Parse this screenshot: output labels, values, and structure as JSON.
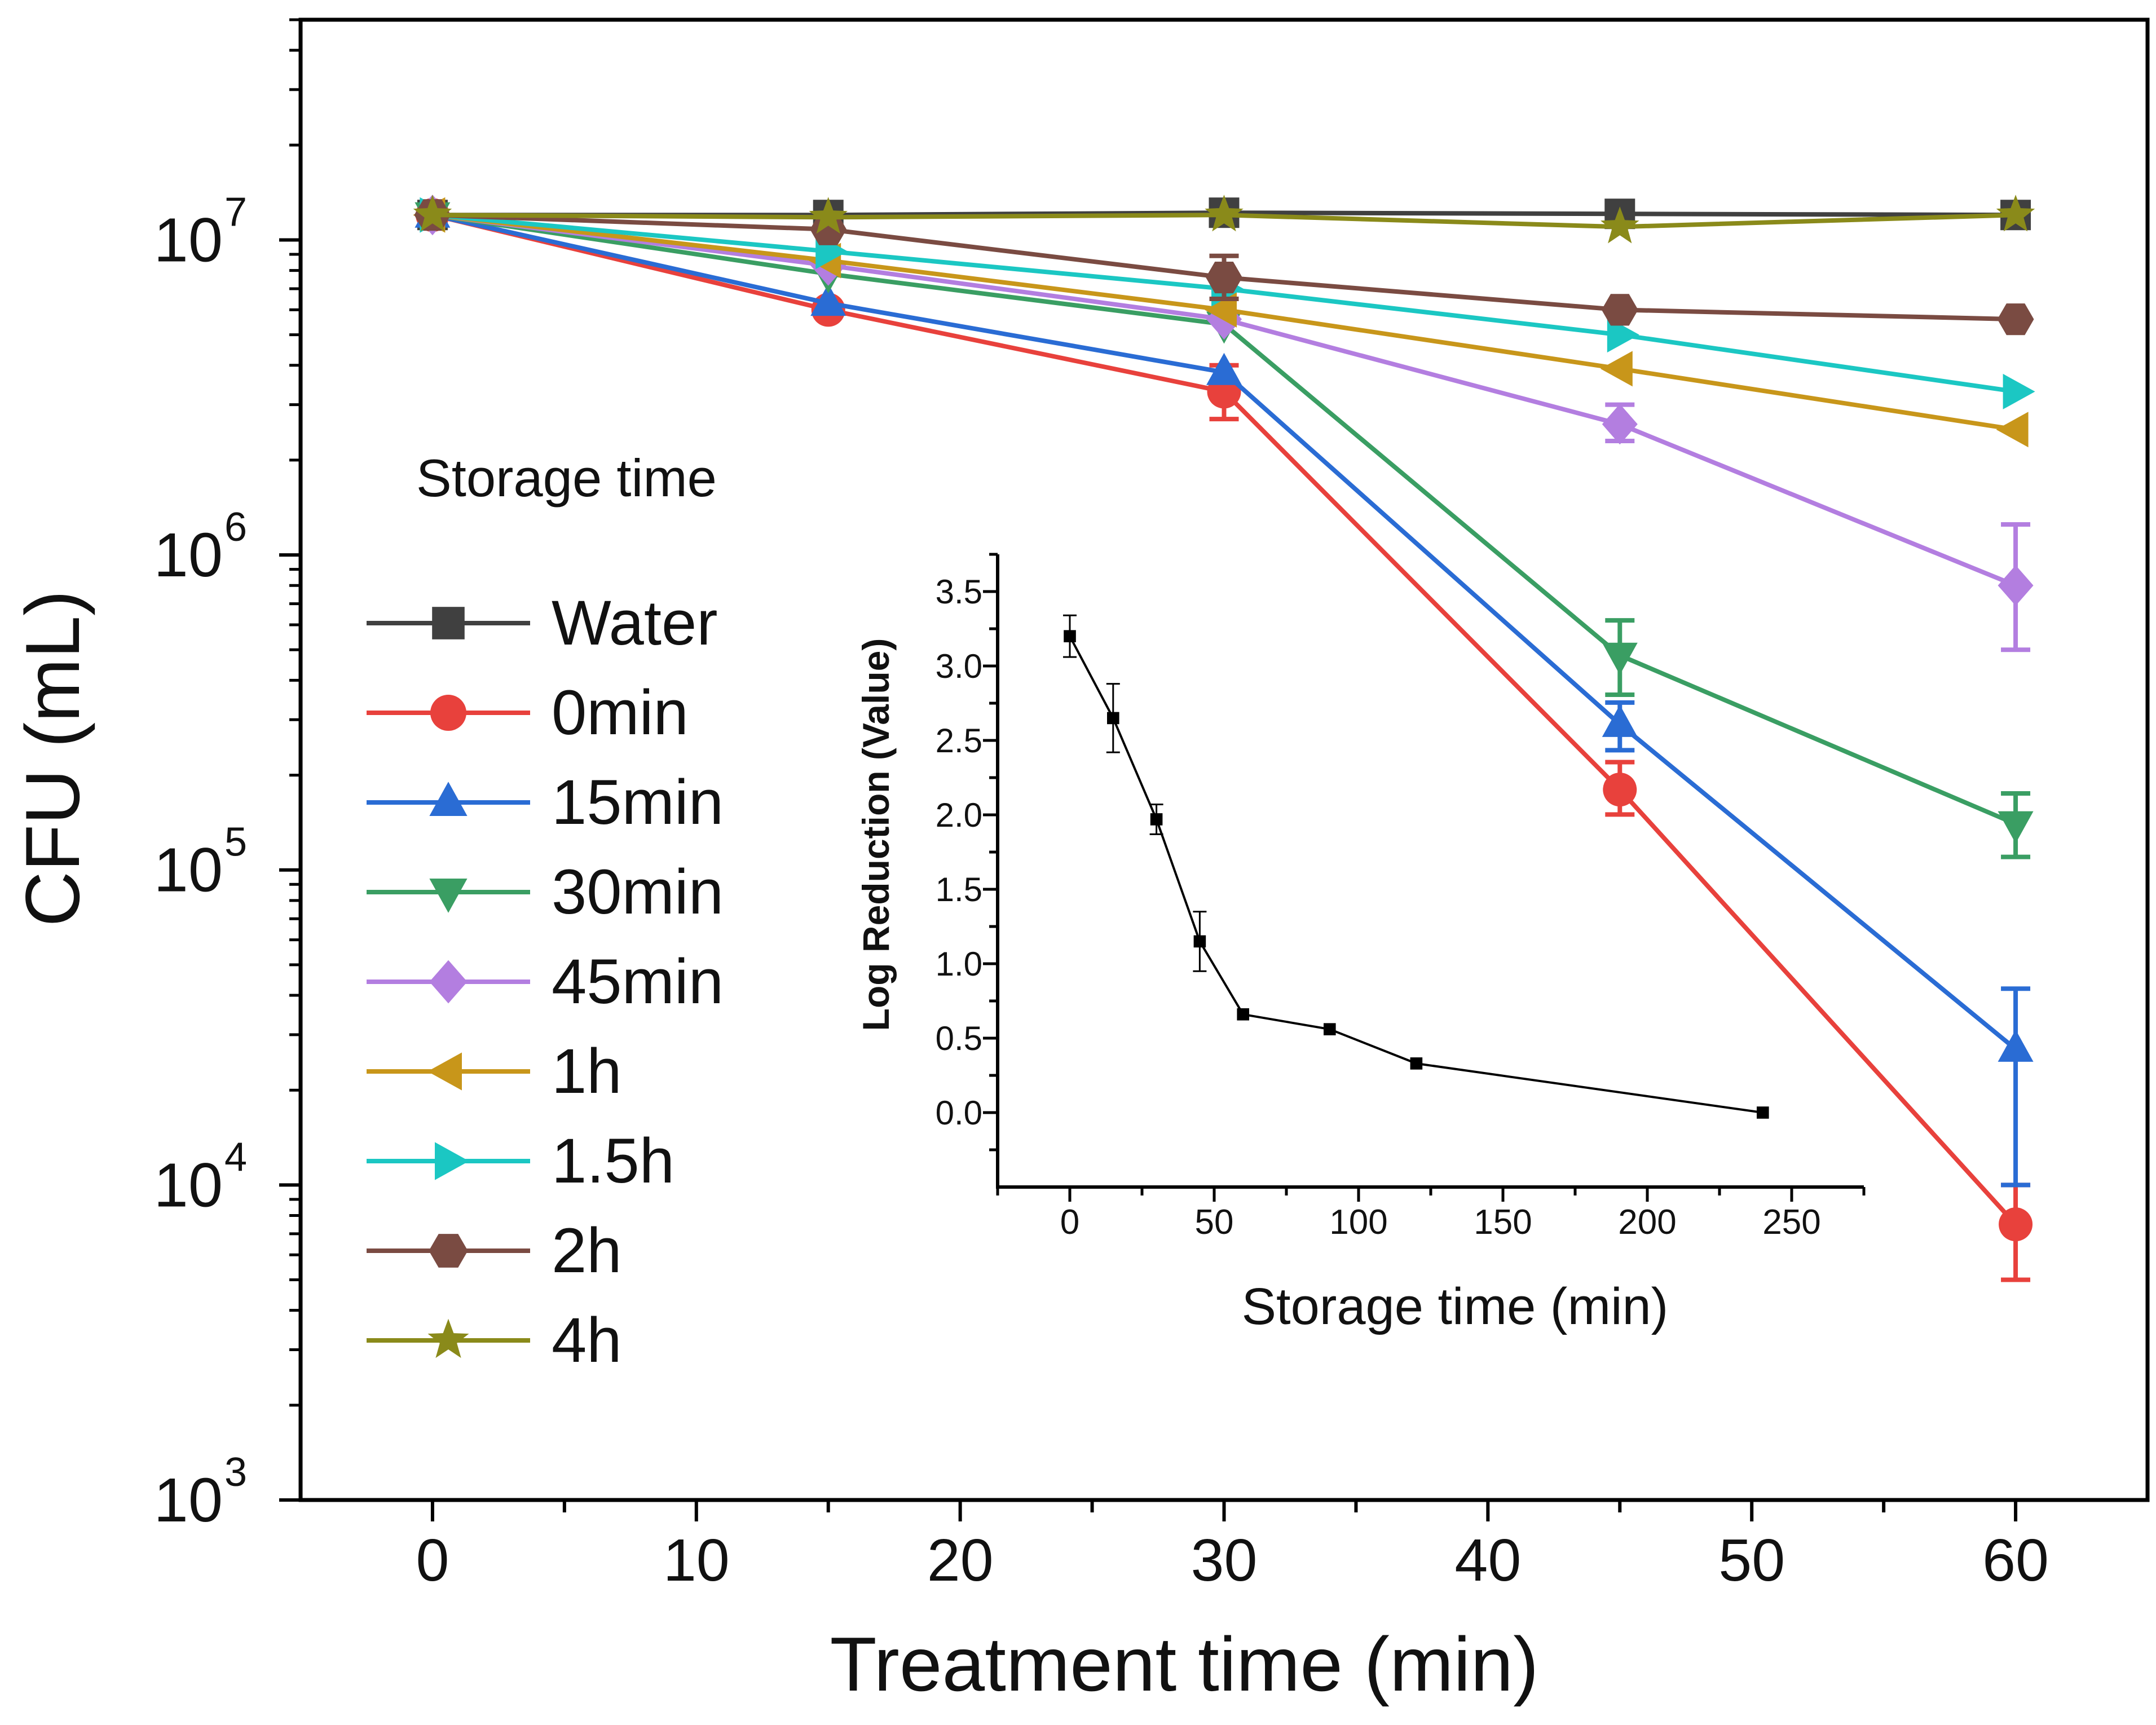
{
  "chart_data": [
    {
      "type": "line",
      "title": "",
      "xlabel": "Treatment time (min)",
      "ylabel": "CFU (mL)",
      "xlim": [
        -5,
        65
      ],
      "ylim": [
        1000,
        50000000
      ],
      "yscale": "log",
      "x_ticks": [
        0,
        10,
        20,
        30,
        40,
        50,
        60
      ],
      "x_tick_labels": [
        "0",
        "10",
        "20",
        "30",
        "40",
        "50",
        "60"
      ],
      "y_ticks": [
        1000,
        10000,
        100000,
        1000000,
        10000000
      ],
      "y_tick_labels": [
        {
          "base": "10",
          "exp": "3"
        },
        {
          "base": "10",
          "exp": "4"
        },
        {
          "base": "10",
          "exp": "5"
        },
        {
          "base": "10",
          "exp": "6"
        },
        {
          "base": "10",
          "exp": "7"
        }
      ],
      "legend_title": "Storage time",
      "legend_position": "left",
      "x": [
        0,
        15,
        30,
        45,
        60
      ],
      "series": [
        {
          "name": "Water",
          "color": "#404040",
          "marker": "square",
          "values": [
            12000000,
            12000000,
            12200000,
            12100000,
            12000000
          ],
          "errors": [
            null,
            null,
            null,
            null,
            null
          ]
        },
        {
          "name": "0min",
          "color": "#e8413c",
          "marker": "circle",
          "values": [
            12000000,
            6000000,
            3300000,
            180000,
            7500
          ],
          "errors": [
            null,
            null,
            [
              2700000,
              4000000
            ],
            [
              150000,
              220000
            ],
            [
              5000,
              10000
            ]
          ]
        },
        {
          "name": "15min",
          "color": "#2a6cd4",
          "marker": "triangle-up",
          "values": [
            12000000,
            6300000,
            3800000,
            290000,
            27000
          ],
          "errors": [
            null,
            null,
            null,
            [
              240000,
              340000
            ],
            [
              10000,
              42000
            ]
          ]
        },
        {
          "name": "30min",
          "color": "#3a9e63",
          "marker": "triangle-down",
          "values": [
            12000000,
            7800000,
            5400000,
            480000,
            140000
          ],
          "errors": [
            null,
            null,
            null,
            [
              360000,
              620000
            ],
            [
              110000,
              175000
            ]
          ]
        },
        {
          "name": "45min",
          "color": "#b37ee0",
          "marker": "diamond",
          "values": [
            12000000,
            8300000,
            5600000,
            2600000,
            800000
          ],
          "errors": [
            null,
            null,
            null,
            [
              2300000,
              3000000
            ],
            [
              500000,
              1250000
            ]
          ]
        },
        {
          "name": "1h",
          "color": "#c8961a",
          "marker": "triangle-left",
          "values": [
            12000000,
            8600000,
            6000000,
            3900000,
            2500000
          ],
          "errors": [
            null,
            null,
            null,
            null,
            null
          ]
        },
        {
          "name": "1.5h",
          "color": "#1bc7c3",
          "marker": "triangle-right",
          "values": [
            12000000,
            9200000,
            7000000,
            5000000,
            3300000
          ],
          "errors": [
            null,
            null,
            null,
            null,
            null
          ]
        },
        {
          "name": "2h",
          "color": "#7a4b42",
          "marker": "hexagon",
          "values": [
            12000000,
            10800000,
            7600000,
            6000000,
            5600000
          ],
          "errors": [
            null,
            null,
            [
              6500000,
              8900000
            ],
            null,
            null
          ]
        },
        {
          "name": "4h",
          "color": "#8a8a1a",
          "marker": "star",
          "values": [
            12000000,
            11800000,
            12000000,
            11000000,
            12000000
          ],
          "errors": [
            null,
            null,
            null,
            null,
            null
          ]
        }
      ]
    },
    {
      "type": "line",
      "title": "",
      "xlabel": "Storage time (min)",
      "ylabel": "Log Reduction (Value)",
      "xlim": [
        -25,
        275
      ],
      "ylim": [
        -0.5,
        3.75
      ],
      "x_ticks": [
        0,
        50,
        100,
        150,
        200,
        250
      ],
      "x_tick_labels": [
        "0",
        "50",
        "100",
        "150",
        "200",
        "250"
      ],
      "y_ticks": [
        0,
        0.5,
        1.0,
        1.5,
        2.0,
        2.5,
        3.0,
        3.5
      ],
      "y_tick_labels": [
        "0.0",
        "0.5",
        "1.0",
        "1.5",
        "2.0",
        "2.5",
        "3.0",
        "3.5"
      ],
      "x": [
        0,
        15,
        30,
        45,
        60,
        90,
        120,
        240
      ],
      "series": [
        {
          "name": "Log reduction",
          "color": "#000000",
          "marker": "square",
          "values": [
            3.2,
            2.65,
            1.97,
            1.15,
            0.66,
            0.56,
            0.33,
            0.0
          ],
          "errors": [
            0.14,
            0.23,
            0.1,
            0.2,
            0,
            0,
            0,
            0
          ]
        }
      ]
    }
  ]
}
